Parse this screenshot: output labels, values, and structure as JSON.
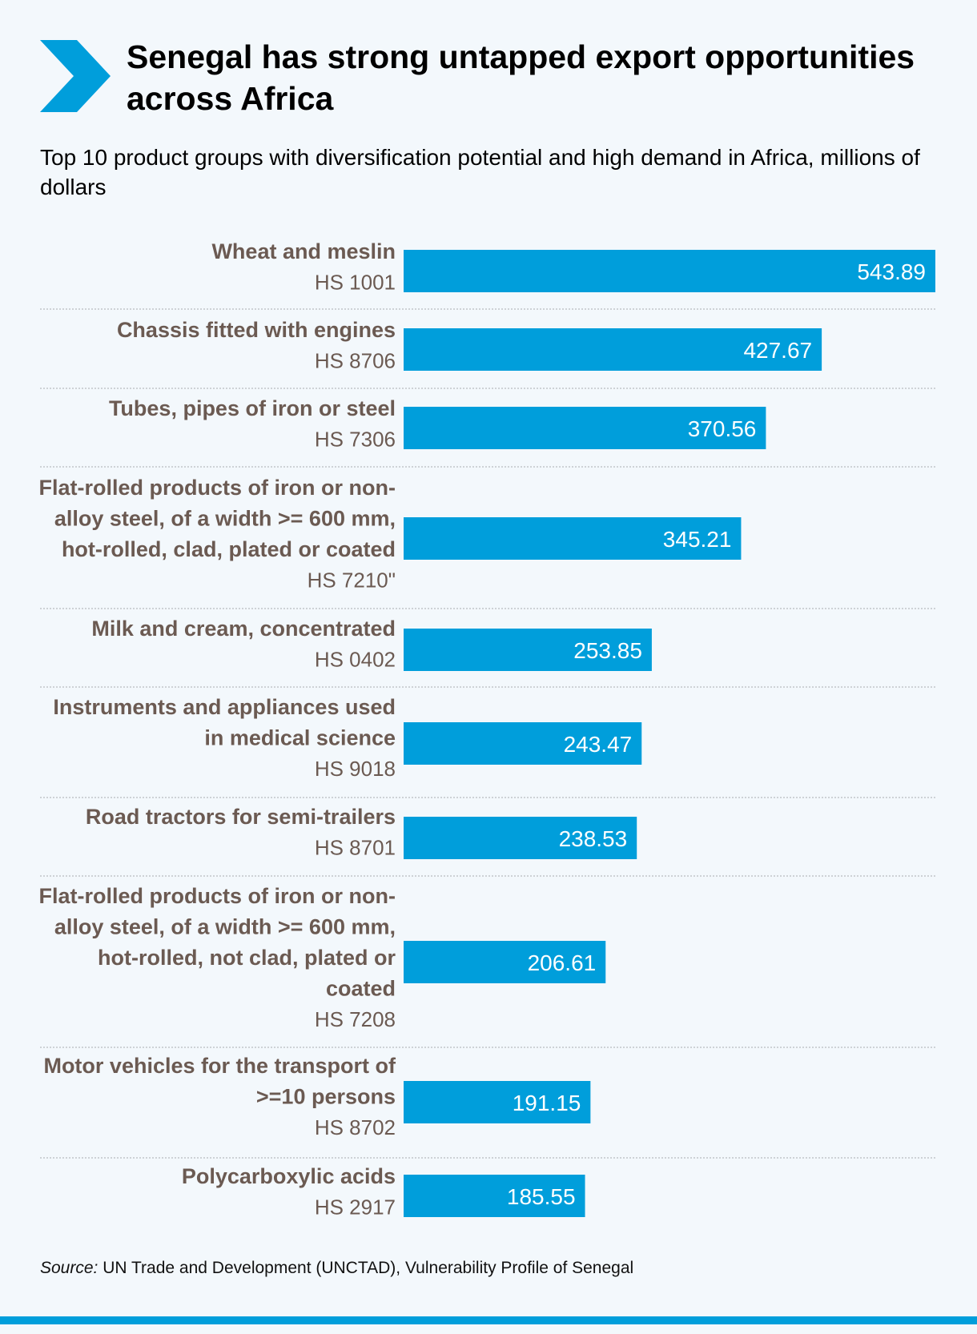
{
  "title": "Senegal has strong untapped export opportunities across Africa",
  "subtitle": "Top 10 product groups with diversification potential and high demand in Africa, millions of dollars",
  "source_label": "Source:",
  "source_text": "UN Trade and Development (UNCTAD), Vulnerability Profile of Senegal",
  "colors": {
    "bar": "#009edb",
    "label": "#6b5a52",
    "code": "#6b5a52",
    "divider": "#b9bcbf",
    "value": "#ffffff"
  },
  "chart_data": {
    "type": "bar",
    "orientation": "horizontal",
    "title": "Top 10 product groups with diversification potential and high demand in Africa, millions of dollars",
    "categories": [
      "Wheat and meslin",
      "Chassis fitted with engines",
      "Tubes, pipes of iron or steel",
      "Flat-rolled products of iron or non-alloy steel, of a width >= 600 mm, hot-rolled, clad, plated or coated",
      "Milk and cream, concentrated",
      "Instruments and appliances used in medical science",
      "Road tractors for semi-trailers",
      "Flat-rolled products of iron or non-alloy steel, of a width >= 600 mm, hot-rolled, not clad, plated or coated",
      "Motor vehicles for the transport of >=10 persons",
      "Polycarboxylic acids"
    ],
    "codes": [
      "HS 1001",
      "HS 8706",
      "HS 7306",
      "HS 7210\"",
      "HS 0402",
      "HS 9018",
      "HS 8701",
      "HS 7208",
      "HS 8702",
      "HS 2917"
    ],
    "values": [
      543.89,
      427.67,
      370.56,
      345.21,
      253.85,
      243.47,
      238.53,
      206.61,
      191.15,
      185.55
    ],
    "value_labels": [
      "543.89",
      "427.67",
      "370.56",
      "345.21",
      "253.85",
      "243.47",
      "238.53",
      "206.61",
      "191.15",
      "185.55"
    ],
    "xlim": [
      0,
      543.89
    ],
    "grid": false,
    "legend": "none"
  }
}
